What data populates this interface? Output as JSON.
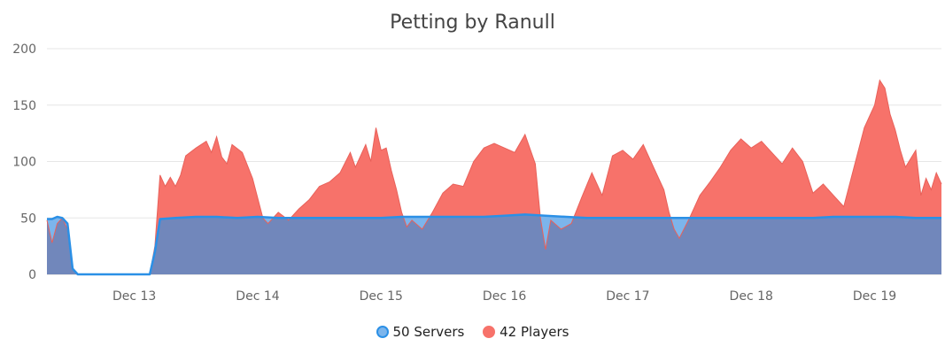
{
  "chart_data": {
    "type": "area",
    "title": "Petting by Ranull",
    "ylim": [
      0,
      200
    ],
    "yticks": [
      0,
      50,
      100,
      150,
      200
    ],
    "xlim": [
      "2023-12-12T07:00",
      "2023-12-19T13:00"
    ],
    "xticks": [
      {
        "x": "2023-12-13T00:00",
        "label": "Dec 13"
      },
      {
        "x": "2023-12-14T00:00",
        "label": "Dec 14"
      },
      {
        "x": "2023-12-15T00:00",
        "label": "Dec 15"
      },
      {
        "x": "2023-12-16T00:00",
        "label": "Dec 16"
      },
      {
        "x": "2023-12-17T00:00",
        "label": "Dec 17"
      },
      {
        "x": "2023-12-18T00:00",
        "label": "Dec 18"
      },
      {
        "x": "2023-12-19T00:00",
        "label": "Dec 19"
      }
    ],
    "grid": true,
    "legend_position": "bottom",
    "colors": {
      "servers_fill": "#7cb5ec",
      "servers_line": "#2b90e6",
      "players_fill": "#f7726a",
      "overlap_fill": "#7187bb"
    },
    "series": [
      {
        "name": "50 Servers",
        "points": [
          [
            "2023-12-12T07:00",
            49
          ],
          [
            "2023-12-12T08:00",
            49
          ],
          [
            "2023-12-12T09:00",
            51
          ],
          [
            "2023-12-12T10:00",
            50
          ],
          [
            "2023-12-12T11:00",
            45
          ],
          [
            "2023-12-12T12:00",
            5
          ],
          [
            "2023-12-12T13:00",
            0
          ],
          [
            "2023-12-12T16:00",
            0
          ],
          [
            "2023-12-12T20:00",
            0
          ],
          [
            "2023-12-13T01:00",
            0
          ],
          [
            "2023-12-13T03:00",
            0
          ],
          [
            "2023-12-13T04:00",
            20
          ],
          [
            "2023-12-13T05:00",
            49
          ],
          [
            "2023-12-13T08:00",
            50
          ],
          [
            "2023-12-13T12:00",
            51
          ],
          [
            "2023-12-13T16:00",
            51
          ],
          [
            "2023-12-13T20:00",
            50
          ],
          [
            "2023-12-14T00:00",
            51
          ],
          [
            "2023-12-14T04:00",
            50
          ],
          [
            "2023-12-14T08:00",
            50
          ],
          [
            "2023-12-14T12:00",
            50
          ],
          [
            "2023-12-14T16:00",
            50
          ],
          [
            "2023-12-14T20:00",
            50
          ],
          [
            "2023-12-15T00:00",
            50
          ],
          [
            "2023-12-15T04:00",
            51
          ],
          [
            "2023-12-15T08:00",
            51
          ],
          [
            "2023-12-15T12:00",
            51
          ],
          [
            "2023-12-15T16:00",
            51
          ],
          [
            "2023-12-15T20:00",
            51
          ],
          [
            "2023-12-16T00:00",
            52
          ],
          [
            "2023-12-16T04:00",
            53
          ],
          [
            "2023-12-16T08:00",
            52
          ],
          [
            "2023-12-16T12:00",
            51
          ],
          [
            "2023-12-16T16:00",
            50
          ],
          [
            "2023-12-16T20:00",
            50
          ],
          [
            "2023-12-17T00:00",
            50
          ],
          [
            "2023-12-17T04:00",
            50
          ],
          [
            "2023-12-17T08:00",
            50
          ],
          [
            "2023-12-17T12:00",
            50
          ],
          [
            "2023-12-17T16:00",
            50
          ],
          [
            "2023-12-17T20:00",
            50
          ],
          [
            "2023-12-18T00:00",
            50
          ],
          [
            "2023-12-18T04:00",
            50
          ],
          [
            "2023-12-18T08:00",
            50
          ],
          [
            "2023-12-18T12:00",
            50
          ],
          [
            "2023-12-18T16:00",
            51
          ],
          [
            "2023-12-18T20:00",
            51
          ],
          [
            "2023-12-19T00:00",
            51
          ],
          [
            "2023-12-19T04:00",
            51
          ],
          [
            "2023-12-19T08:00",
            50
          ],
          [
            "2023-12-19T13:00",
            50
          ]
        ]
      },
      {
        "name": "42 Players",
        "points": [
          [
            "2023-12-12T07:00",
            48
          ],
          [
            "2023-12-12T08:00",
            28
          ],
          [
            "2023-12-12T09:00",
            45
          ],
          [
            "2023-12-12T10:00",
            50
          ],
          [
            "2023-12-12T11:00",
            40
          ],
          [
            "2023-12-12T12:00",
            5
          ],
          [
            "2023-12-12T13:00",
            0
          ],
          [
            "2023-12-12T16:00",
            0
          ],
          [
            "2023-12-12T20:00",
            0
          ],
          [
            "2023-12-13T01:00",
            0
          ],
          [
            "2023-12-13T03:00",
            0
          ],
          [
            "2023-12-13T04:00",
            25
          ],
          [
            "2023-12-13T05:00",
            88
          ],
          [
            "2023-12-13T06:00",
            78
          ],
          [
            "2023-12-13T07:00",
            86
          ],
          [
            "2023-12-13T08:00",
            78
          ],
          [
            "2023-12-13T09:00",
            88
          ],
          [
            "2023-12-13T10:00",
            105
          ],
          [
            "2023-12-13T12:00",
            112
          ],
          [
            "2023-12-13T14:00",
            118
          ],
          [
            "2023-12-13T15:00",
            108
          ],
          [
            "2023-12-13T16:00",
            122
          ],
          [
            "2023-12-13T17:00",
            104
          ],
          [
            "2023-12-13T18:00",
            98
          ],
          [
            "2023-12-13T19:00",
            115
          ],
          [
            "2023-12-13T21:00",
            108
          ],
          [
            "2023-12-13T23:00",
            85
          ],
          [
            "2023-12-14T01:00",
            50
          ],
          [
            "2023-12-14T02:00",
            45
          ],
          [
            "2023-12-14T04:00",
            55
          ],
          [
            "2023-12-14T06:00",
            48
          ],
          [
            "2023-12-14T08:00",
            58
          ],
          [
            "2023-12-14T10:00",
            66
          ],
          [
            "2023-12-14T12:00",
            78
          ],
          [
            "2023-12-14T14:00",
            82
          ],
          [
            "2023-12-14T16:00",
            90
          ],
          [
            "2023-12-14T18:00",
            108
          ],
          [
            "2023-12-14T19:00",
            95
          ],
          [
            "2023-12-14T21:00",
            115
          ],
          [
            "2023-12-14T22:00",
            100
          ],
          [
            "2023-12-14T23:00",
            130
          ],
          [
            "2023-12-15T00:00",
            110
          ],
          [
            "2023-12-15T01:00",
            112
          ],
          [
            "2023-12-15T02:00",
            92
          ],
          [
            "2023-12-15T03:00",
            75
          ],
          [
            "2023-12-15T04:00",
            55
          ],
          [
            "2023-12-15T05:00",
            42
          ],
          [
            "2023-12-15T06:00",
            48
          ],
          [
            "2023-12-15T08:00",
            40
          ],
          [
            "2023-12-15T10:00",
            55
          ],
          [
            "2023-12-15T12:00",
            72
          ],
          [
            "2023-12-15T14:00",
            80
          ],
          [
            "2023-12-15T16:00",
            78
          ],
          [
            "2023-12-15T18:00",
            100
          ],
          [
            "2023-12-15T20:00",
            112
          ],
          [
            "2023-12-15T22:00",
            116
          ],
          [
            "2023-12-16T00:00",
            112
          ],
          [
            "2023-12-16T02:00",
            108
          ],
          [
            "2023-12-16T04:00",
            124
          ],
          [
            "2023-12-16T06:00",
            98
          ],
          [
            "2023-12-16T07:00",
            50
          ],
          [
            "2023-12-16T08:00",
            22
          ],
          [
            "2023-12-16T09:00",
            48
          ],
          [
            "2023-12-16T11:00",
            40
          ],
          [
            "2023-12-16T13:00",
            45
          ],
          [
            "2023-12-16T15:00",
            68
          ],
          [
            "2023-12-16T17:00",
            90
          ],
          [
            "2023-12-16T19:00",
            70
          ],
          [
            "2023-12-16T21:00",
            105
          ],
          [
            "2023-12-16T23:00",
            110
          ],
          [
            "2023-12-17T01:00",
            102
          ],
          [
            "2023-12-17T03:00",
            115
          ],
          [
            "2023-12-17T05:00",
            95
          ],
          [
            "2023-12-17T07:00",
            75
          ],
          [
            "2023-12-17T08:00",
            55
          ],
          [
            "2023-12-17T09:00",
            40
          ],
          [
            "2023-12-17T10:00",
            32
          ],
          [
            "2023-12-17T12:00",
            50
          ],
          [
            "2023-12-17T14:00",
            70
          ],
          [
            "2023-12-17T16:00",
            82
          ],
          [
            "2023-12-17T18:00",
            95
          ],
          [
            "2023-12-17T20:00",
            110
          ],
          [
            "2023-12-17T22:00",
            120
          ],
          [
            "2023-12-18T00:00",
            112
          ],
          [
            "2023-12-18T02:00",
            118
          ],
          [
            "2023-12-18T04:00",
            108
          ],
          [
            "2023-12-18T06:00",
            98
          ],
          [
            "2023-12-18T08:00",
            112
          ],
          [
            "2023-12-18T10:00",
            100
          ],
          [
            "2023-12-18T12:00",
            72
          ],
          [
            "2023-12-18T14:00",
            80
          ],
          [
            "2023-12-18T16:00",
            70
          ],
          [
            "2023-12-18T18:00",
            60
          ],
          [
            "2023-12-18T20:00",
            95
          ],
          [
            "2023-12-18T22:00",
            130
          ],
          [
            "2023-12-19T00:00",
            150
          ],
          [
            "2023-12-19T01:00",
            172
          ],
          [
            "2023-12-19T02:00",
            165
          ],
          [
            "2023-12-19T03:00",
            142
          ],
          [
            "2023-12-19T04:00",
            128
          ],
          [
            "2023-12-19T05:00",
            110
          ],
          [
            "2023-12-19T06:00",
            95
          ],
          [
            "2023-12-19T08:00",
            110
          ],
          [
            "2023-12-19T09:00",
            70
          ],
          [
            "2023-12-19T10:00",
            85
          ],
          [
            "2023-12-19T11:00",
            75
          ],
          [
            "2023-12-19T12:00",
            90
          ],
          [
            "2023-12-19T13:00",
            80
          ]
        ]
      }
    ]
  },
  "legend": {
    "servers": "50 Servers",
    "players": "42 Players"
  }
}
